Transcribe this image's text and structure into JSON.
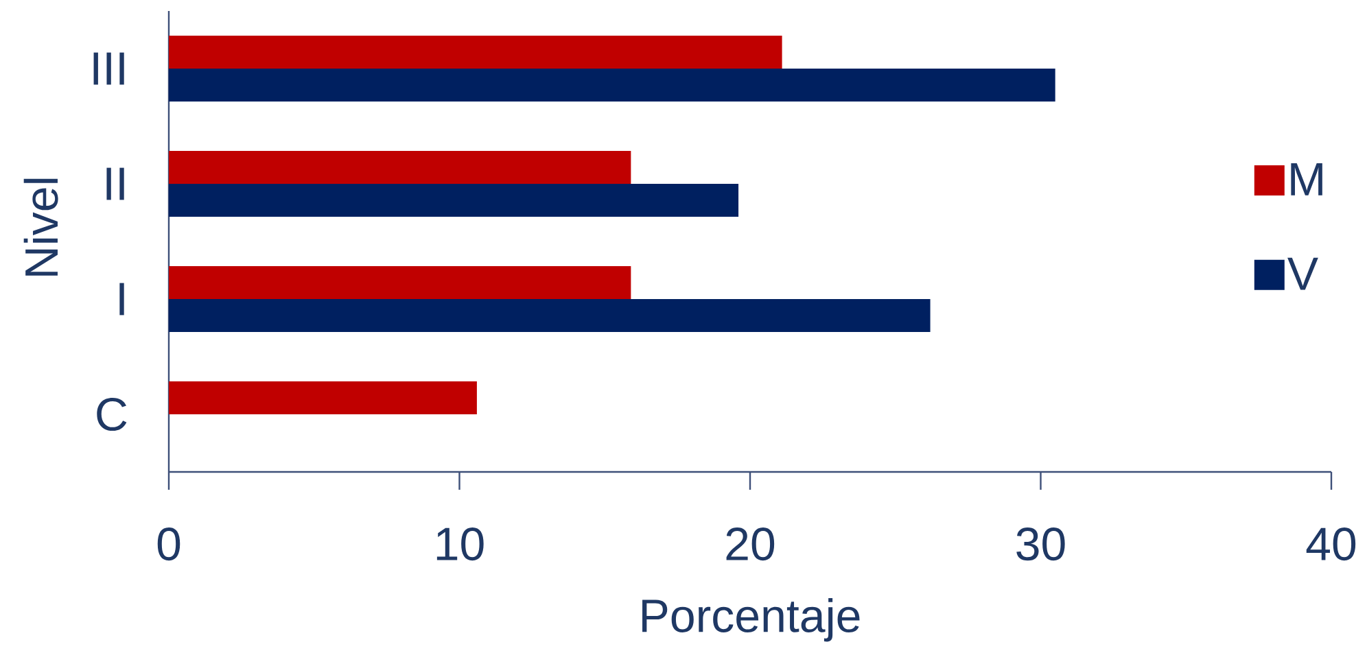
{
  "chart_data": {
    "type": "bar",
    "orientation": "horizontal",
    "categories": [
      "III",
      "II",
      "I",
      "C"
    ],
    "series": [
      {
        "name": "M",
        "color": "#c00000",
        "values": [
          21.1,
          15.9,
          15.9,
          10.6
        ]
      },
      {
        "name": "V",
        "color": "#002060",
        "values": [
          30.5,
          19.6,
          26.2,
          null
        ]
      }
    ],
    "xlabel": "Porcentaje",
    "ylabel": "Nivel",
    "xlim": [
      0,
      40
    ],
    "xticks": [
      0,
      10,
      20,
      30,
      40
    ],
    "legend": "right"
  }
}
